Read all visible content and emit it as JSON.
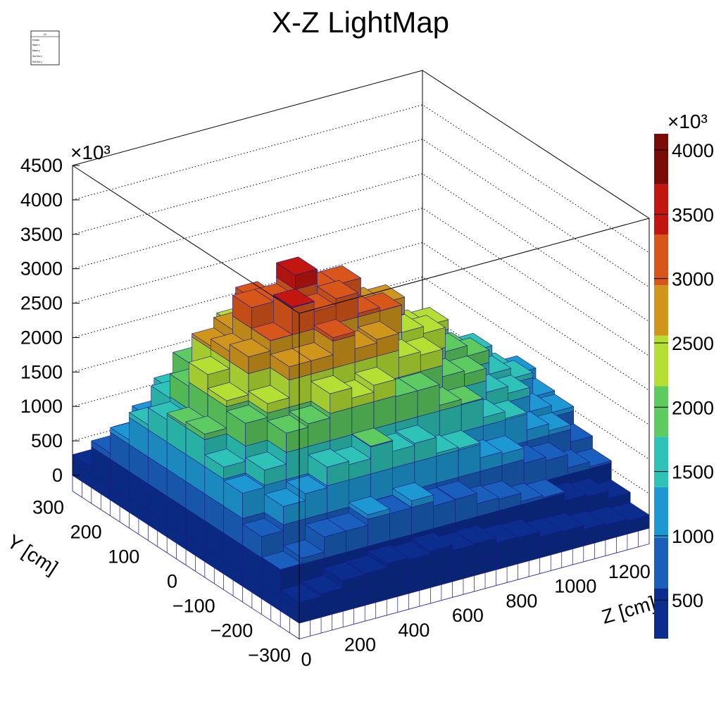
{
  "chart_data": {
    "type": "lego",
    "title": "X-Z LightMap",
    "xlabel": "Z [cm]",
    "ylabel": "Y [cm]",
    "zlabel": "",
    "value_multiplier": "×10³",
    "z_ticks": [
      "0",
      "500",
      "1000",
      "1500",
      "2000",
      "2500",
      "3000",
      "3500",
      "4000",
      "4500"
    ],
    "y_ticks": [
      "300",
      "200",
      "100",
      "0",
      "−100",
      "−200",
      "−300"
    ],
    "x_ticks": [
      "0",
      "200",
      "400",
      "600",
      "800",
      "1000",
      "1200"
    ],
    "zlim": [
      0,
      4500
    ],
    "xlim": [
      0,
      1300
    ],
    "ylim": [
      -300,
      300
    ],
    "grid": true,
    "stats_box": {
      "name": "h2",
      "rows": [
        "Entries",
        "Mean x",
        "Mean y",
        "Std Dev x",
        "Std Dev y"
      ]
    },
    "palette": {
      "levels": [
        200,
        593,
        985,
        1378,
        1770,
        2163,
        2556,
        2948,
        3341,
        3733,
        4126
      ],
      "colors": [
        "#0b2d8e",
        "#1a5fbb",
        "#1e98d3",
        "#2ec3b6",
        "#5dcb60",
        "#b5e033",
        "#d0961c",
        "#d8561a",
        "#c2160f",
        "#7a0c08"
      ],
      "tick_labels": [
        "500",
        "1000",
        "1500",
        "2000",
        "2500",
        "3000",
        "3500",
        "4000"
      ],
      "multiplier": "×10³"
    },
    "x_bin_edges_start": 0,
    "x_bin_width": 81.25,
    "y_bin_edges_start": -300,
    "y_bin_width": 50,
    "values": [
      [
        300,
        340,
        450,
        460,
        520,
        490,
        530,
        450,
        460,
        390,
        380,
        310,
        300,
        240,
        220,
        190
      ],
      [
        600,
        680,
        900,
        900,
        1050,
        980,
        1080,
        920,
        930,
        780,
        760,
        640,
        610,
        480,
        450,
        340
      ],
      [
        900,
        1250,
        1350,
        1650,
        1600,
        1780,
        1620,
        1650,
        1420,
        1400,
        1180,
        1150,
        930,
        880,
        690,
        620
      ],
      [
        1350,
        1600,
        2050,
        2100,
        2450,
        2300,
        2400,
        2150,
        2150,
        1850,
        1780,
        1500,
        1400,
        1150,
        1050,
        800
      ],
      [
        1550,
        2100,
        2300,
        2750,
        2750,
        3000,
        2750,
        2800,
        2450,
        2400,
        2000,
        1950,
        1600,
        1500,
        1150,
        1050
      ],
      [
        1850,
        2250,
        2800,
        2950,
        3350,
        3200,
        3300,
        3000,
        2950,
        2550,
        2450,
        2100,
        1950,
        1600,
        1450,
        1100
      ],
      [
        1800,
        2450,
        2700,
        3250,
        3250,
        3550,
        3250,
        3250,
        2850,
        2800,
        2350,
        2300,
        1850,
        1750,
        1380,
        1250
      ],
      [
        1700,
        2100,
        2600,
        2750,
        3100,
        2950,
        3050,
        2750,
        2750,
        2350,
        2300,
        1900,
        1800,
        1450,
        1350,
        1050
      ],
      [
        1450,
        1750,
        2150,
        2300,
        2550,
        2500,
        2550,
        2300,
        2300,
        1950,
        1900,
        1600,
        1500,
        1250,
        1100,
        850
      ],
      [
        1050,
        1280,
        1600,
        1680,
        1900,
        1820,
        1880,
        1700,
        1680,
        1450,
        1400,
        1180,
        1100,
        900,
        820,
        640
      ],
      [
        680,
        800,
        1020,
        1060,
        1200,
        1150,
        1200,
        1080,
        1070,
        920,
        890,
        750,
        700,
        570,
        520,
        400
      ],
      [
        300,
        350,
        440,
        470,
        520,
        490,
        520,
        460,
        450,
        400,
        380,
        320,
        300,
        250,
        230,
        180
      ]
    ]
  }
}
